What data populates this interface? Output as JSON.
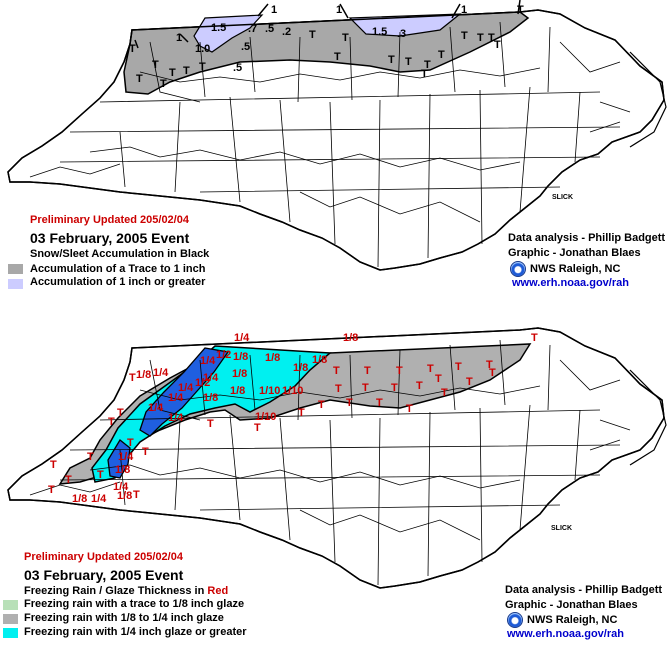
{
  "top_map": {
    "updated": "Preliminary Updated 205/02/04",
    "event": "03 February, 2005 Event",
    "subtitle": "Snow/Sleet Accumulation in Black",
    "legend": [
      {
        "label": "Accumulation of a Trace to 1 inch",
        "color": "#a8a8a8"
      },
      {
        "label": "Accumulation of 1 inch or greater",
        "color": "#ccccff"
      }
    ],
    "credits": {
      "analysis": "Data analysis - Phillip Badgett",
      "graphic": "Graphic - Jonathan Blaes",
      "office": "NWS Raleigh, NC",
      "url": "www.erh.noaa.gov/rah"
    },
    "contour_labels": [
      "1",
      "1",
      "1",
      "1",
      "T"
    ],
    "point_labels": [
      "1.5",
      "1.0",
      ".5",
      ".5",
      ".7",
      ".5",
      ".2",
      "1.5",
      ".3",
      "T",
      "T",
      "T",
      "T",
      "T",
      "T",
      "T",
      "T",
      "T",
      "T",
      "T",
      "T",
      "T",
      "T",
      "T",
      "T",
      "T",
      "T",
      "T"
    ],
    "slick": "SLICK"
  },
  "bottom_map": {
    "updated": "Preliminary Updated 205/02/04",
    "event": "03 February, 2005 Event",
    "subtitle_prefix": "Freezing Rain / Glaze Thickness in ",
    "subtitle_color_word": "Red",
    "legend": [
      {
        "label": "Freezing rain with a trace to 1/8 inch glaze",
        "color": "#b8e0b8"
      },
      {
        "label": "Freezing rain with 1/8 to 1/4 inch glaze",
        "color": "#b0b0b0"
      },
      {
        "label": "Freezing rain with 1/4 inch glaze or greater",
        "color": "#00f0f0"
      }
    ],
    "credits": {
      "analysis": "Data analysis - Phillip Badgett",
      "graphic": "Graphic - Jonathan Blaes",
      "office": "NWS Raleigh, NC",
      "url": "www.erh.noaa.gov/rah"
    },
    "contour_labels": [
      "1/4",
      "1/8",
      "T",
      "T",
      "1/8",
      "1/4",
      "T",
      "1/8",
      "1/4",
      "T",
      "T"
    ],
    "point_labels": [
      "1/2",
      "1/4",
      "1/8",
      "1/8",
      "1/8",
      "1/8",
      "1/8",
      "1/8",
      "1/8",
      "1/4",
      "1/2",
      "1/4",
      "1/4",
      "1/4",
      "1/4",
      "1/8",
      "1/10",
      "1/10",
      "1/10",
      "1/4",
      "1/4",
      "1/8",
      "T",
      "T",
      "T",
      "T",
      "T",
      "T",
      "T",
      "T",
      "T",
      "T",
      "T",
      "T",
      "T",
      "T",
      "T",
      "T",
      "T",
      "T",
      "T",
      "T",
      "T",
      "T",
      "T",
      "T",
      "T",
      "T",
      "T",
      "T"
    ],
    "slick": "SLICK"
  },
  "colors": {
    "text_red": "#cc0000",
    "link_blue": "#0000cc",
    "border_black": "#000000",
    "county_lines": "#000000"
  }
}
